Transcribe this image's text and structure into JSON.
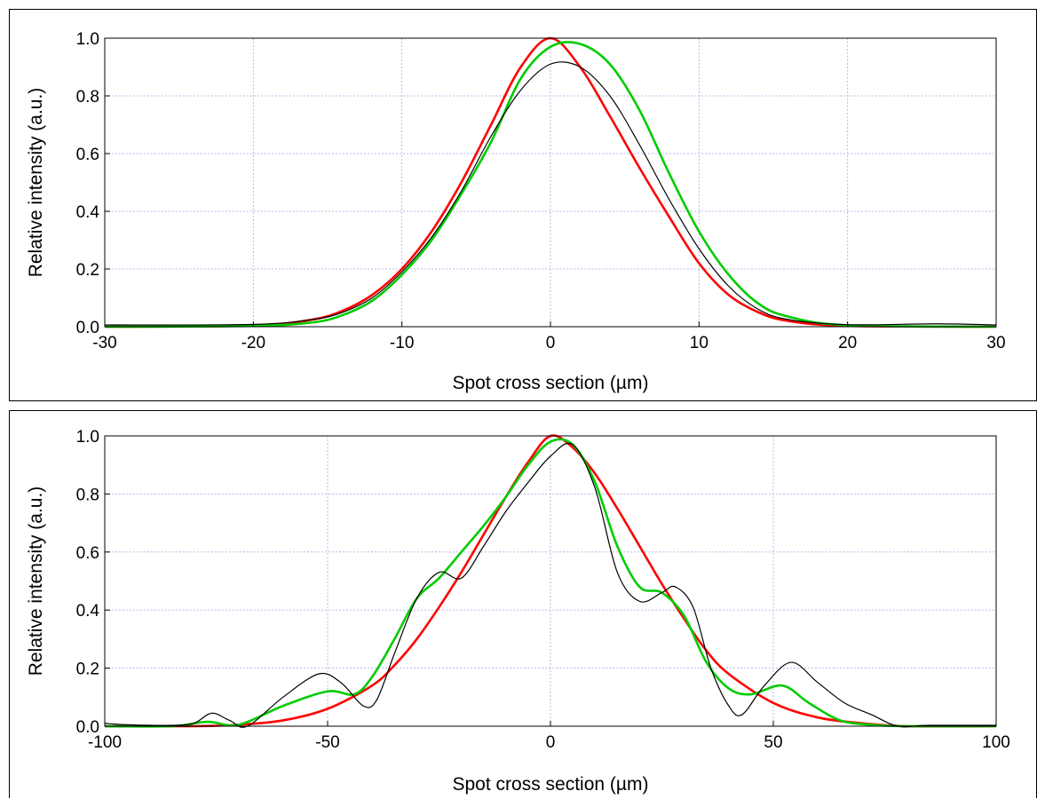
{
  "chart_data": [
    {
      "type": "line",
      "xlabel": "Spot cross section (µm)",
      "ylabel": "Relative intensity (a.u.)",
      "xlim": [
        -30,
        30
      ],
      "ylim": [
        0,
        1.0
      ],
      "xticks": [
        -30,
        -20,
        -10,
        0,
        10,
        20,
        30
      ],
      "xtick_labels": [
        "-30",
        "-20",
        "-10",
        "0",
        "10",
        "20",
        "30"
      ],
      "yticks": [
        0,
        0.2,
        0.4,
        0.6,
        0.8,
        1.0
      ],
      "ytick_labels": [
        "0.0",
        "0.2",
        "0.4",
        "0.6",
        "0.8",
        "1.0"
      ],
      "grid": true,
      "series": [
        {
          "color": "#ff0000",
          "x": [
            -30,
            -20,
            -16,
            -14,
            -12,
            -10,
            -8,
            -6,
            -4,
            -2,
            0,
            2,
            4,
            6,
            8,
            10,
            12,
            14,
            16,
            20,
            30
          ],
          "y": [
            0.0,
            0.004,
            0.025,
            0.055,
            0.11,
            0.2,
            0.33,
            0.5,
            0.7,
            0.9,
            1.0,
            0.9,
            0.73,
            0.55,
            0.38,
            0.22,
            0.11,
            0.05,
            0.02,
            0.003,
            0.0
          ]
        },
        {
          "color": "#00cc00",
          "x": [
            -30,
            -20,
            -16,
            -14,
            -12,
            -10,
            -8,
            -6,
            -4,
            -2,
            0,
            2,
            4,
            6,
            8,
            10,
            12,
            14,
            16,
            20,
            30
          ],
          "y": [
            0.0,
            0.003,
            0.015,
            0.04,
            0.09,
            0.18,
            0.3,
            0.46,
            0.64,
            0.86,
            0.97,
            0.98,
            0.91,
            0.75,
            0.53,
            0.33,
            0.18,
            0.08,
            0.035,
            0.005,
            0.0
          ]
        },
        {
          "color": "#000000",
          "x": [
            -30,
            -20,
            -16,
            -14,
            -12,
            -10,
            -8,
            -6,
            -4,
            -2,
            0,
            2,
            4,
            6,
            8,
            10,
            12,
            14,
            16,
            20,
            26,
            30
          ],
          "y": [
            0.006,
            0.008,
            0.025,
            0.05,
            0.1,
            0.19,
            0.31,
            0.47,
            0.66,
            0.82,
            0.91,
            0.9,
            0.8,
            0.63,
            0.44,
            0.27,
            0.14,
            0.06,
            0.025,
            0.007,
            0.01,
            0.006
          ]
        }
      ]
    },
    {
      "type": "line",
      "xlabel": "Spot cross section (µm)",
      "ylabel": "Relative intensity (a.u.)",
      "xlim": [
        -100,
        100
      ],
      "ylim": [
        0,
        1.0
      ],
      "xticks": [
        -100,
        -50,
        0,
        50,
        100
      ],
      "xtick_labels": [
        "-100",
        "-50",
        "0",
        "50",
        "100"
      ],
      "yticks": [
        0,
        0.2,
        0.4,
        0.6,
        0.8,
        1.0
      ],
      "ytick_labels": [
        "0.0",
        "0.2",
        "0.4",
        "0.6",
        "0.8",
        "1.0"
      ],
      "grid": true,
      "series": [
        {
          "color": "#ff0000",
          "x": [
            -100,
            -80,
            -70,
            -60,
            -50,
            -40,
            -35,
            -30,
            -25,
            -20,
            -15,
            -10,
            -5,
            0,
            5,
            10,
            15,
            20,
            25,
            30,
            35,
            40,
            50,
            60,
            70,
            80,
            100
          ],
          "y": [
            0.0,
            0.0,
            0.005,
            0.02,
            0.06,
            0.14,
            0.21,
            0.3,
            0.41,
            0.53,
            0.66,
            0.79,
            0.91,
            1.0,
            0.96,
            0.87,
            0.75,
            0.62,
            0.49,
            0.37,
            0.26,
            0.18,
            0.08,
            0.03,
            0.01,
            0.0,
            0.0
          ]
        },
        {
          "color": "#00cc00",
          "x": [
            -100,
            -85,
            -77,
            -70,
            -60,
            -50,
            -44,
            -40,
            -35,
            -30,
            -25,
            -20,
            -15,
            -10,
            -5,
            0,
            5,
            10,
            15,
            20,
            25,
            30,
            35,
            40,
            45,
            52,
            58,
            65,
            72,
            80,
            100
          ],
          "y": [
            0.0,
            0.0,
            0.015,
            0.005,
            0.07,
            0.12,
            0.11,
            0.17,
            0.3,
            0.44,
            0.51,
            0.6,
            0.69,
            0.79,
            0.9,
            0.98,
            0.97,
            0.84,
            0.62,
            0.48,
            0.46,
            0.38,
            0.22,
            0.13,
            0.11,
            0.14,
            0.08,
            0.02,
            0.005,
            0.0,
            0.0
          ]
        },
        {
          "color": "#000000",
          "x": [
            -100,
            -95,
            -85,
            -80,
            -76,
            -72,
            -68,
            -60,
            -52,
            -47,
            -42,
            -39,
            -35,
            -30,
            -25,
            -20,
            -15,
            -10,
            -5,
            0,
            5,
            10,
            15,
            20,
            25,
            28,
            32,
            36,
            40,
            43,
            48,
            54,
            60,
            66,
            72,
            78,
            85,
            100
          ],
          "y": [
            0.01,
            0.005,
            0.003,
            0.01,
            0.045,
            0.02,
            0.0,
            0.1,
            0.18,
            0.15,
            0.07,
            0.09,
            0.25,
            0.44,
            0.53,
            0.51,
            0.62,
            0.74,
            0.84,
            0.93,
            0.97,
            0.82,
            0.53,
            0.43,
            0.46,
            0.48,
            0.41,
            0.2,
            0.07,
            0.04,
            0.14,
            0.22,
            0.15,
            0.08,
            0.04,
            0.0,
            0.003,
            0.003
          ]
        }
      ]
    }
  ]
}
